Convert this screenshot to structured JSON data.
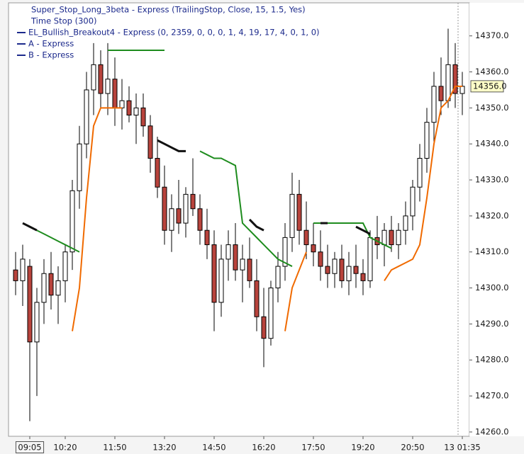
{
  "chart_data": {
    "type": "candlestick",
    "legend_entries": [
      "Super_Stop_Long_3beta - Express  (TrailingStop, Close, 15, 1.5, Yes)",
      "Time Stop  (300)",
      "EL_Bullish_Breakout4 - Express  (0, 2359, 0, 0, 0, 1, 4, 19, 17, 4, 0, 1, 0)",
      "A - Express",
      "B - Express"
    ],
    "categories": [
      null,
      null,
      "09:05",
      null,
      null,
      null,
      null,
      "10:20",
      null,
      null,
      null,
      null,
      null,
      null,
      "11:50",
      null,
      null,
      null,
      null,
      null,
      null,
      "13:20",
      null,
      null,
      null,
      null,
      null,
      null,
      "14:50",
      null,
      null,
      null,
      null,
      null,
      null,
      "16:20",
      null,
      null,
      null,
      null,
      null,
      null,
      "17:50",
      null,
      null,
      null,
      null,
      null,
      null,
      "19:20",
      null,
      null,
      null,
      null,
      null,
      null,
      "20:50",
      null,
      null,
      null,
      null,
      null,
      null,
      "13 01:35"
    ],
    "open": [
      14305,
      14302,
      14306,
      14285,
      14296,
      14304,
      14298,
      14302,
      14310,
      14327,
      14340,
      14355,
      14362,
      14354,
      14358,
      14350,
      14352,
      14348,
      14350,
      14345,
      14336,
      14328,
      14316,
      14322,
      14318,
      14326,
      14322,
      14316,
      14312,
      14296,
      14308,
      14312,
      14305,
      14308,
      14302,
      14292,
      14286,
      14300,
      14306,
      14314,
      14326,
      14316,
      14312,
      14310,
      14306,
      14304,
      14308,
      14302,
      14306,
      14304,
      14302,
      14314,
      14312,
      14316,
      14312,
      14316,
      14320,
      14328,
      14336,
      14346,
      14356,
      14352,
      14362,
      14354
    ],
    "high": [
      14310,
      14312,
      14308,
      14300,
      14308,
      14310,
      14306,
      14312,
      14330,
      14345,
      14360,
      14368,
      14366,
      14368,
      14364,
      14358,
      14356,
      14354,
      14354,
      14348,
      14342,
      14334,
      14326,
      14330,
      14328,
      14336,
      14326,
      14322,
      14316,
      14312,
      14316,
      14318,
      14312,
      14314,
      14308,
      14300,
      14302,
      14310,
      14318,
      14332,
      14330,
      14324,
      14318,
      14316,
      14312,
      14310,
      14312,
      14310,
      14312,
      14308,
      14316,
      14320,
      14318,
      14320,
      14318,
      14324,
      14330,
      14340,
      14350,
      14360,
      14364,
      14372,
      14368,
      14360
    ],
    "low": [
      14298,
      14295,
      14263,
      14270,
      14290,
      14294,
      14290,
      14296,
      14305,
      14322,
      14336,
      14348,
      14350,
      14348,
      14345,
      14344,
      14346,
      14340,
      14342,
      14332,
      14325,
      14312,
      14310,
      14315,
      14314,
      14320,
      14312,
      14308,
      14288,
      14292,
      14302,
      14302,
      14296,
      14300,
      14288,
      14278,
      14284,
      14296,
      14302,
      14310,
      14312,
      14308,
      14306,
      14302,
      14300,
      14300,
      14300,
      14298,
      14300,
      14298,
      14300,
      14308,
      14306,
      14310,
      14308,
      14312,
      14316,
      14324,
      14332,
      14340,
      14348,
      14350,
      14350,
      14348
    ],
    "close": [
      14302,
      14308,
      14285,
      14296,
      14304,
      14298,
      14302,
      14310,
      14327,
      14340,
      14355,
      14362,
      14354,
      14358,
      14350,
      14352,
      14348,
      14350,
      14345,
      14336,
      14328,
      14316,
      14322,
      14318,
      14326,
      14322,
      14316,
      14312,
      14296,
      14308,
      14312,
      14305,
      14308,
      14302,
      14292,
      14286,
      14300,
      14306,
      14314,
      14326,
      14316,
      14312,
      14310,
      14306,
      14304,
      14308,
      14302,
      14306,
      14304,
      14302,
      14314,
      14312,
      14316,
      14312,
      14316,
      14320,
      14328,
      14336,
      14346,
      14356,
      14352,
      14362,
      14354,
      14356
    ],
    "up_color": "#ffffff",
    "down_color": "#b8433c",
    "series": [
      {
        "color": "#f06a00",
        "values": [
          null,
          null,
          null,
          null,
          null,
          null,
          null,
          null,
          14288,
          14300,
          14325,
          14345,
          14350,
          14350,
          14350,
          14350,
          null,
          null,
          null,
          null,
          null,
          null,
          null,
          null,
          null,
          null,
          null,
          null,
          null,
          null,
          null,
          null,
          null,
          null,
          null,
          null,
          null,
          null,
          14288,
          14300,
          14305,
          14310,
          null,
          null,
          null,
          null,
          null,
          null,
          null,
          null,
          null,
          null,
          14302,
          14305,
          14306,
          14307,
          14308,
          14312,
          14325,
          14340,
          14350,
          14352,
          14356,
          14356
        ]
      },
      {
        "color": "#1e8c1e",
        "values": [
          null,
          null,
          null,
          14316,
          14315,
          14314,
          14313,
          14312,
          14311,
          14310,
          null,
          null,
          null,
          14366,
          14366,
          14366,
          14366,
          14366,
          14366,
          14366,
          14366,
          14366,
          null,
          null,
          null,
          null,
          14338,
          14337,
          14336,
          14336,
          14335,
          14334,
          14318,
          14316,
          14314,
          14312,
          14310,
          14308,
          14307,
          14306,
          null,
          null,
          14318,
          14318,
          14318,
          14318,
          14318,
          14318,
          14318,
          14318,
          14314,
          14313,
          14312,
          14311,
          null,
          null,
          null,
          null,
          null,
          null,
          null,
          null,
          null,
          null
        ]
      },
      {
        "color": "#111111",
        "values": [
          null,
          14318,
          14317,
          14316,
          null,
          null,
          null,
          null,
          null,
          null,
          null,
          null,
          null,
          null,
          null,
          null,
          null,
          null,
          null,
          null,
          14341,
          14340,
          14339,
          14338,
          14338,
          null,
          null,
          null,
          null,
          null,
          null,
          null,
          null,
          14319,
          14317,
          14316,
          null,
          null,
          null,
          null,
          null,
          null,
          null,
          14318,
          14318,
          null,
          null,
          null,
          14317,
          14316,
          14315,
          null,
          null,
          null,
          null,
          null,
          null,
          null,
          null,
          null,
          null,
          null,
          null,
          null
        ]
      }
    ],
    "last_price": 14356,
    "last_price_label": "14356.0",
    "ylim": [
      14259,
      14378
    ],
    "yticks": [
      {
        "value": 14260,
        "label": "14260.0"
      },
      {
        "value": 14270,
        "label": "14270.0"
      },
      {
        "value": 14280,
        "label": "14280.0"
      },
      {
        "value": 14290,
        "label": "14290.0"
      },
      {
        "value": 14300,
        "label": "14300.0"
      },
      {
        "value": 14310,
        "label": "14310.0"
      },
      {
        "value": 14320,
        "label": "14320.0"
      },
      {
        "value": 14330,
        "label": "14330.0"
      },
      {
        "value": 14340,
        "label": "14340.0"
      },
      {
        "value": 14350,
        "label": "14350.0"
      },
      {
        "value": 14360,
        "label": "14360.0"
      },
      {
        "value": 14370,
        "label": "14370.0"
      }
    ]
  }
}
